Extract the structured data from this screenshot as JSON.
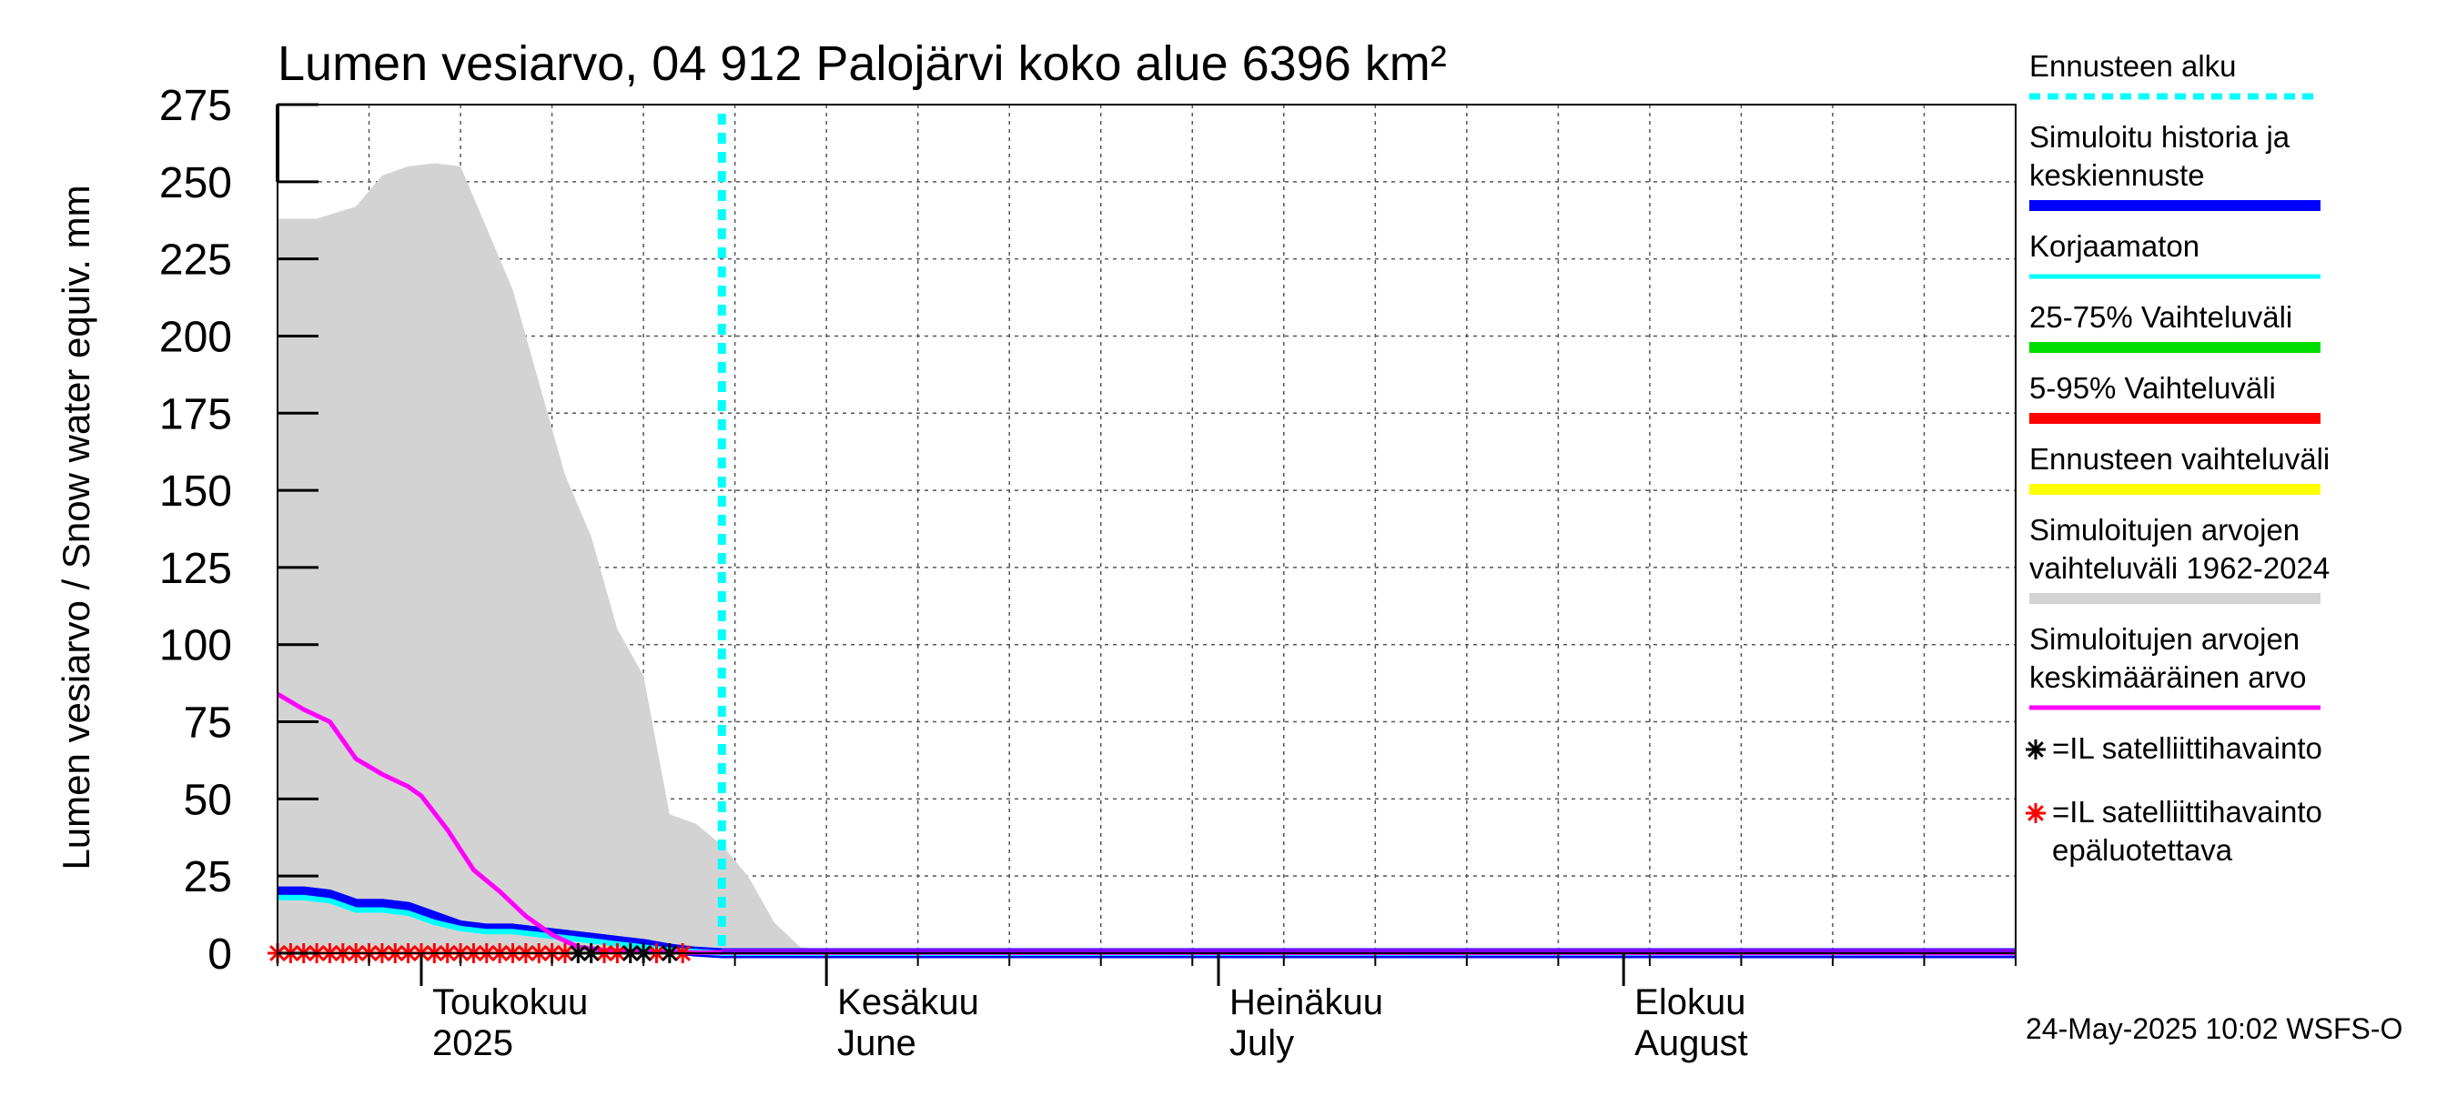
{
  "chart_data": {
    "type": "line",
    "title": "Lumen vesiarvo, 04 912 Palojärvi koko alue 6396 km²",
    "ylabel": "Lumen vesiarvo / Snow water equiv.    mm",
    "ylim": [
      0,
      275
    ],
    "yticks": [
      0,
      25,
      50,
      75,
      100,
      125,
      150,
      175,
      200,
      225,
      250,
      275
    ],
    "xlim": [
      "2025-04-20",
      "2025-08-31"
    ],
    "x_month_labels": [
      {
        "date": "2025-05-01",
        "line1": "Toukokuu",
        "line2": "2025"
      },
      {
        "date": "2025-06-01",
        "line1": "Kesäkuu",
        "line2": "June"
      },
      {
        "date": "2025-07-01",
        "line1": "Heinäkuu",
        "line2": "July"
      },
      {
        "date": "2025-08-01",
        "line1": "Elokuu",
        "line2": "August"
      }
    ],
    "grid": true,
    "forecast_start": "2025-05-24",
    "series": [
      {
        "name": "Simuloitujen arvojen vaihteluväli 1962-2024",
        "kind": "band",
        "color": "#d3d3d3",
        "x": [
          "2025-04-20",
          "2025-04-23",
          "2025-04-26",
          "2025-04-28",
          "2025-04-30",
          "2025-05-02",
          "2025-05-04",
          "2025-05-06",
          "2025-05-08",
          "2025-05-10",
          "2025-05-12",
          "2025-05-14",
          "2025-05-16",
          "2025-05-18",
          "2025-05-20",
          "2025-05-22",
          "2025-05-24",
          "2025-05-26",
          "2025-05-28",
          "2025-05-30",
          "2025-06-01",
          "2025-06-10",
          "2025-08-31"
        ],
        "upper": [
          238,
          238,
          242,
          252,
          255,
          256,
          255,
          235,
          215,
          185,
          155,
          135,
          105,
          90,
          45,
          42,
          35,
          25,
          10,
          2,
          1,
          0,
          0
        ],
        "lower": [
          0,
          0,
          0,
          0,
          0,
          0,
          0,
          0,
          0,
          0,
          0,
          0,
          0,
          0,
          0,
          0,
          0,
          0,
          0,
          0,
          0,
          0,
          0
        ]
      },
      {
        "name": "Simuloitujen arvojen keskimääräinen arvo",
        "kind": "line",
        "color": "#ff00ff",
        "x": [
          "2025-04-20",
          "2025-04-22",
          "2025-04-24",
          "2025-04-26",
          "2025-04-28",
          "2025-04-30",
          "2025-05-01",
          "2025-05-03",
          "2025-05-05",
          "2025-05-07",
          "2025-05-09",
          "2025-05-11",
          "2025-05-13",
          "2025-05-15",
          "2025-05-18",
          "2025-05-22",
          "2025-08-31"
        ],
        "y": [
          84,
          79,
          75,
          63,
          58,
          54,
          51,
          40,
          27,
          20,
          12,
          6,
          2,
          1,
          0.5,
          0.2,
          0
        ]
      },
      {
        "name": "Korjaamaton",
        "kind": "line",
        "color": "#00ffff",
        "x": [
          "2025-04-20",
          "2025-04-22",
          "2025-04-24",
          "2025-04-26",
          "2025-04-28",
          "2025-04-30",
          "2025-05-02",
          "2025-05-04",
          "2025-05-06",
          "2025-05-08",
          "2025-05-10",
          "2025-05-12",
          "2025-05-14",
          "2025-05-16",
          "2025-05-18",
          "2025-05-20",
          "2025-05-22",
          "2025-05-24",
          "2025-08-31"
        ],
        "y": [
          18,
          18,
          17,
          14,
          14,
          13,
          10,
          8,
          7,
          7,
          6,
          5,
          4,
          3,
          2,
          1,
          0.5,
          0,
          0
        ]
      },
      {
        "name": "Simuloitu historia ja keskiennuste",
        "kind": "line",
        "color": "#0000ff",
        "x": [
          "2025-04-20",
          "2025-04-22",
          "2025-04-24",
          "2025-04-26",
          "2025-04-28",
          "2025-04-30",
          "2025-05-02",
          "2025-05-04",
          "2025-05-06",
          "2025-05-08",
          "2025-05-10",
          "2025-05-12",
          "2025-05-14",
          "2025-05-16",
          "2025-05-18",
          "2025-05-20",
          "2025-05-22",
          "2025-05-24",
          "2025-08-31"
        ],
        "y": [
          20,
          20,
          19,
          16,
          16,
          15,
          12,
          9,
          8,
          8,
          7,
          6,
          5,
          4,
          3,
          1.5,
          0.5,
          0,
          0
        ]
      },
      {
        "name": "Ennusteen vaihteluväli",
        "kind": "line",
        "color": "#ffff00",
        "x": [
          "2025-05-24",
          "2025-08-31"
        ],
        "y": [
          0,
          0
        ]
      },
      {
        "name": "25-75% Vaihteluväli",
        "kind": "line",
        "color": "#00dd00",
        "x": [
          "2025-05-24",
          "2025-08-31"
        ],
        "y": [
          0,
          0
        ]
      },
      {
        "name": "5-95% Vaihteluväli",
        "kind": "line",
        "color": "#ff0000",
        "x": [
          "2025-05-24",
          "2025-08-31"
        ],
        "y": [
          0,
          0
        ]
      }
    ],
    "observations_reliable": {
      "name": "=IL satelliittihavainto",
      "color": "#000000",
      "x": [
        "2025-05-13",
        "2025-05-14",
        "2025-05-17",
        "2025-05-18",
        "2025-05-20"
      ],
      "y": [
        0,
        0,
        0,
        0,
        0
      ]
    },
    "observations_unreliable": {
      "name": "=IL satelliittihavainto epäluotettava",
      "color": "#ff0000",
      "x": [
        "2025-04-20",
        "2025-04-21",
        "2025-04-22",
        "2025-04-23",
        "2025-04-24",
        "2025-04-25",
        "2025-04-26",
        "2025-04-27",
        "2025-04-28",
        "2025-04-29",
        "2025-04-30",
        "2025-05-01",
        "2025-05-02",
        "2025-05-03",
        "2025-05-04",
        "2025-05-05",
        "2025-05-06",
        "2025-05-07",
        "2025-05-08",
        "2025-05-09",
        "2025-05-10",
        "2025-05-11",
        "2025-05-12",
        "2025-05-15",
        "2025-05-16",
        "2025-05-19",
        "2025-05-21"
      ],
      "y": [
        0,
        0,
        0,
        0,
        0,
        0,
        0,
        0,
        0,
        0,
        0,
        0,
        0,
        0,
        0,
        0,
        0,
        0,
        0,
        0,
        0,
        0,
        0,
        0,
        0,
        0,
        0
      ]
    },
    "legend": {
      "placement": "right",
      "items": [
        {
          "lines": [
            "Ennusteen alku"
          ],
          "color": "#00ffff",
          "style": "dotted"
        },
        {
          "lines": [
            "Simuloitu historia ja",
            "keskiennuste"
          ],
          "color": "#0000ff",
          "style": "thick"
        },
        {
          "lines": [
            "Korjaamaton"
          ],
          "color": "#00ffff",
          "style": "thin"
        },
        {
          "lines": [
            "25-75% Vaihteluväli"
          ],
          "color": "#00dd00",
          "style": "thick"
        },
        {
          "lines": [
            "5-95% Vaihteluväli"
          ],
          "color": "#ff0000",
          "style": "thick"
        },
        {
          "lines": [
            "Ennusteen vaihteluväli"
          ],
          "color": "#ffff00",
          "style": "thick"
        },
        {
          "lines": [
            "Simuloitujen arvojen",
            "vaihteluväli 1962-2024"
          ],
          "color": "#d3d3d3",
          "style": "thick"
        },
        {
          "lines": [
            "Simuloitujen arvojen",
            "keskimääräinen arvo"
          ],
          "color": "#ff00ff",
          "style": "medium"
        },
        {
          "lines": [
            "=IL satelliittihavainto"
          ],
          "color": "#000000",
          "style": "marker"
        },
        {
          "lines": [
            "=IL satelliittihavainto",
            "epäluotettava"
          ],
          "color": "#ff0000",
          "style": "marker"
        }
      ]
    },
    "footer": "24-May-2025 10:02 WSFS-O"
  }
}
